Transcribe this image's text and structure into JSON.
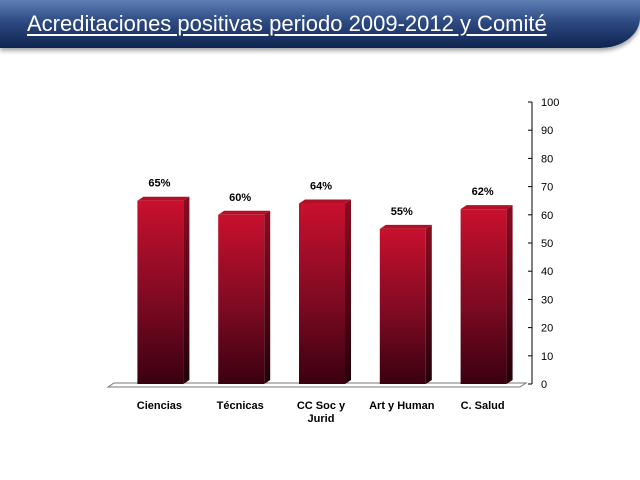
{
  "slide": {
    "title": "Acreditaciones positivas periodo 2009-2012 y Comité"
  },
  "colors": {
    "title_bar": "#2d4a82",
    "bar_top": "#c8102e",
    "bar_bottom": "#3a0010"
  },
  "chart_data": {
    "type": "bar",
    "categories": [
      "Ciencias",
      "Técnicas",
      "CC Soc y\nJurid",
      "Art y Human",
      "C. Salud"
    ],
    "values": [
      65,
      60,
      64,
      55,
      62
    ],
    "data_labels": [
      "65%",
      "60%",
      "64%",
      "55%",
      "62%"
    ],
    "ylim": [
      0,
      100
    ],
    "yticks": [
      0,
      10,
      20,
      30,
      40,
      50,
      60,
      70,
      80,
      90,
      100
    ],
    "y_axis_position": "right",
    "grid": false,
    "legend": "none"
  }
}
